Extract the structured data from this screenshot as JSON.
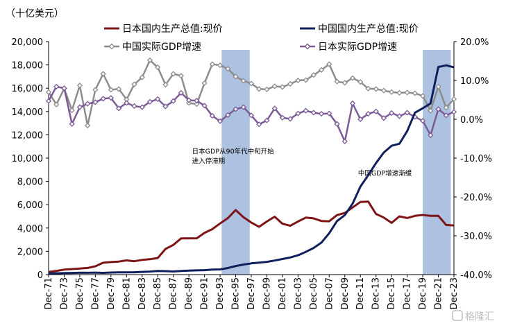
{
  "unit_label": "（十亿美元）",
  "watermark": "格隆汇",
  "chart_data": {
    "type": "line",
    "title": "",
    "y_left": {
      "min": 0,
      "max": 20000,
      "step": 2000,
      "ticks": [
        "0",
        "2,000",
        "4,000",
        "6,000",
        "8,000",
        "10,000",
        "12,000",
        "14,000",
        "16,000",
        "18,000",
        "20,000"
      ]
    },
    "y_right": {
      "min": -40,
      "max": 20,
      "step": 10,
      "ticks": [
        "-40.0%",
        "-30.0%",
        "-20.0%",
        "-10.0%",
        "0.0%",
        "10.0%",
        "20.0%"
      ]
    },
    "x_range": [
      1971,
      2023
    ],
    "x_tick_labels": [
      "Dec-71",
      "Dec-73",
      "Dec-75",
      "Dec-77",
      "Dec-79",
      "Dec-81",
      "Dec-83",
      "Dec-85",
      "Dec-87",
      "Dec-89",
      "Dec-91",
      "Dec-93",
      "Dec-95",
      "Dec-97",
      "Dec-99",
      "Dec-01",
      "Dec-03",
      "Dec-05",
      "Dec-07",
      "Dec-09",
      "Dec-11",
      "Dec-13",
      "Dec-15",
      "Dec-17",
      "Dec-19",
      "Dec-21",
      "Dec-23"
    ],
    "x_tick_years": [
      1971,
      1973,
      1975,
      1977,
      1979,
      1981,
      1983,
      1985,
      1987,
      1989,
      1991,
      1993,
      1995,
      1997,
      1999,
      2001,
      2003,
      2005,
      2007,
      2009,
      2011,
      2013,
      2015,
      2017,
      2019,
      2021,
      2023
    ],
    "shaded_periods": [
      [
        1993.2,
        1996.8
      ],
      [
        2019.0,
        2022.6
      ]
    ],
    "annotations": [
      {
        "lines": [
          "日本GDP从90年代中旬开始",
          "进入停滞期"
        ],
        "x": 1989.4,
        "y": 10400
      },
      {
        "lines": [
          "中国GDP增速渐缓"
        ],
        "x": 2010.7,
        "y": 8500
      }
    ],
    "series": [
      {
        "name": "日本国内生产总值:现价",
        "axis": "left",
        "color": "#7f1416",
        "width": 3,
        "marker": "none",
        "x": [
          1971,
          1972,
          1973,
          1974,
          1975,
          1976,
          1977,
          1978,
          1979,
          1980,
          1981,
          1982,
          1983,
          1984,
          1985,
          1986,
          1987,
          1988,
          1989,
          1990,
          1991,
          1992,
          1993,
          1994,
          1995,
          1996,
          1997,
          1998,
          1999,
          2000,
          2001,
          2002,
          2003,
          2004,
          2005,
          2006,
          2007,
          2008,
          2009,
          2010,
          2011,
          2012,
          2013,
          2014,
          2015,
          2016,
          2017,
          2018,
          2019,
          2020,
          2021,
          2022,
          2023
        ],
        "values": [
          232,
          318,
          430,
          478,
          522,
          573,
          717,
          1020,
          1080,
          1120,
          1220,
          1150,
          1260,
          1320,
          1420,
          2200,
          2550,
          3110,
          3110,
          3120,
          3580,
          3900,
          4390,
          4850,
          5540,
          4920,
          4470,
          4100,
          4560,
          4970,
          4370,
          4190,
          4560,
          4890,
          4830,
          4600,
          4580,
          5110,
          5290,
          5760,
          6230,
          6270,
          5210,
          4900,
          4440,
          5000,
          4860,
          5040,
          5120,
          5050,
          5040,
          4260,
          4220
        ]
      },
      {
        "name": "中国国内生产总值:现价",
        "axis": "left",
        "color": "#0f1f5c",
        "width": 3,
        "marker": "none",
        "x": [
          1971,
          1972,
          1973,
          1974,
          1975,
          1976,
          1977,
          1978,
          1979,
          1980,
          1981,
          1982,
          1983,
          1984,
          1985,
          1986,
          1987,
          1988,
          1989,
          1990,
          1991,
          1992,
          1993,
          1994,
          1995,
          1996,
          1997,
          1998,
          1999,
          2000,
          2001,
          2002,
          2003,
          2004,
          2005,
          2006,
          2007,
          2008,
          2009,
          2010,
          2011,
          2012,
          2013,
          2014,
          2015,
          2016,
          2017,
          2018,
          2019,
          2020,
          2021,
          2022,
          2023
        ],
        "values": [
          100,
          112,
          138,
          144,
          163,
          153,
          175,
          150,
          178,
          191,
          196,
          205,
          230,
          260,
          310,
          300,
          270,
          312,
          348,
          361,
          383,
          427,
          444,
          564,
          734,
          864,
          962,
          1029,
          1094,
          1211,
          1339,
          1471,
          1660,
          1955,
          2286,
          2752,
          3552,
          4598,
          5110,
          6087,
          7552,
          8532,
          9570,
          10476,
          11062,
          11233,
          12310,
          13895,
          14280,
          14688,
          17820,
          17963,
          17794
        ]
      },
      {
        "name": "中国实际GDP增速",
        "axis": "right",
        "color": "#8c8c8c",
        "width": 2.5,
        "marker": "diamond",
        "x": [
          1971,
          1972,
          1973,
          1974,
          1975,
          1976,
          1977,
          1978,
          1979,
          1980,
          1981,
          1982,
          1983,
          1984,
          1985,
          1986,
          1987,
          1988,
          1989,
          1990,
          1991,
          1992,
          1993,
          1994,
          1995,
          1996,
          1997,
          1998,
          1999,
          2000,
          2001,
          2002,
          2003,
          2004,
          2005,
          2006,
          2007,
          2008,
          2009,
          2010,
          2011,
          2012,
          2013,
          2014,
          2015,
          2016,
          2017,
          2018,
          2019,
          2020,
          2021,
          2022,
          2023
        ],
        "values": [
          7.0,
          3.8,
          7.9,
          2.3,
          8.7,
          -1.6,
          7.6,
          11.7,
          7.6,
          7.8,
          5.1,
          9.0,
          10.8,
          15.2,
          13.4,
          8.9,
          11.7,
          11.2,
          4.2,
          3.9,
          9.3,
          14.2,
          13.9,
          13.0,
          11.0,
          9.9,
          9.2,
          7.8,
          7.7,
          8.5,
          8.3,
          9.1,
          10.0,
          10.1,
          11.4,
          12.7,
          14.2,
          9.7,
          9.4,
          10.6,
          9.6,
          7.9,
          7.8,
          7.4,
          7.0,
          6.8,
          6.9,
          6.7,
          6.0,
          2.2,
          8.4,
          3.0,
          5.2
        ]
      },
      {
        "name": "日本实际GDP增速",
        "axis": "right",
        "color": "#7b5a96",
        "width": 2.5,
        "marker": "diamond",
        "x": [
          1971,
          1972,
          1973,
          1974,
          1975,
          1976,
          1977,
          1978,
          1979,
          1980,
          1981,
          1982,
          1983,
          1984,
          1985,
          1986,
          1987,
          1988,
          1989,
          1990,
          1991,
          1992,
          1993,
          1994,
          1995,
          1996,
          1997,
          1998,
          1999,
          2000,
          2001,
          2002,
          2003,
          2004,
          2005,
          2006,
          2007,
          2008,
          2009,
          2010,
          2011,
          2012,
          2013,
          2014,
          2015,
          2016,
          2017,
          2018,
          2019,
          2020,
          2021,
          2022,
          2023
        ],
        "values": [
          4.7,
          8.4,
          8.0,
          -1.2,
          3.1,
          4.0,
          4.4,
          5.3,
          5.5,
          2.8,
          4.2,
          3.4,
          3.1,
          4.5,
          5.2,
          3.3,
          4.7,
          6.8,
          4.9,
          4.8,
          3.5,
          0.9,
          -0.5,
          1.1,
          2.6,
          3.1,
          1.0,
          -1.3,
          -0.3,
          2.8,
          0.4,
          0.1,
          1.5,
          2.2,
          1.7,
          1.4,
          1.5,
          -1.2,
          -5.7,
          4.1,
          0.0,
          1.4,
          2.0,
          0.3,
          1.6,
          0.8,
          1.7,
          0.6,
          -0.4,
          -4.1,
          2.6,
          1.0,
          1.9
        ]
      }
    ]
  }
}
